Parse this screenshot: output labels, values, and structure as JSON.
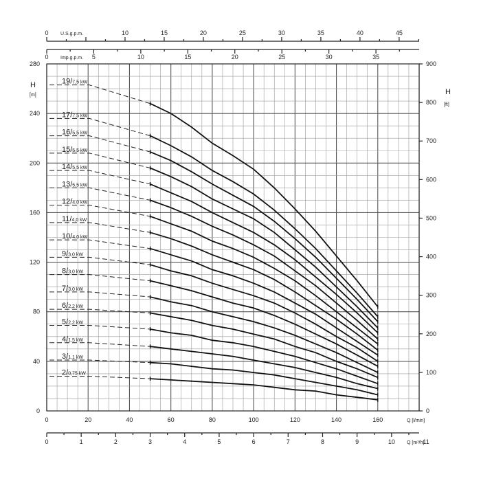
{
  "chart_data": {
    "type": "line",
    "axes": {
      "left": {
        "label": "H",
        "unit": "[m]",
        "range": [
          0,
          280
        ],
        "ticks": [
          "0",
          "40",
          "80",
          "120",
          "160",
          "200",
          "240",
          "280"
        ]
      },
      "right": {
        "label": "H",
        "unit": "[ft]",
        "range": [
          0,
          900
        ],
        "ticks": [
          "0",
          "100",
          "200",
          "300",
          "400",
          "500",
          "600",
          "700",
          "800",
          "900"
        ]
      },
      "bottom": {
        "label": "Q [l/min]",
        "range": [
          0,
          180
        ],
        "ticks": [
          "0",
          "20",
          "40",
          "60",
          "80",
          "100",
          "120",
          "140",
          "160"
        ]
      },
      "bottom2": {
        "label": "Q [m³/h]",
        "range": [
          0,
          10.8
        ],
        "ticks": [
          "0",
          "1",
          "2",
          "3",
          "4",
          "5",
          "6",
          "7",
          "8",
          "9",
          "10",
          "11"
        ]
      },
      "top1": {
        "label": "U.S.g.p.m.",
        "ticks": [
          "0",
          "10",
          "15",
          "20",
          "25",
          "30",
          "35",
          "40",
          "45"
        ]
      },
      "top2": {
        "label": "Imp.g.p.m.",
        "ticks": [
          "0",
          "5",
          "10",
          "15",
          "20",
          "25",
          "30",
          "35"
        ]
      },
      "grid": true
    },
    "x": [
      50,
      60,
      70,
      80,
      90,
      100,
      110,
      120,
      130,
      140,
      150,
      160
    ],
    "series": [
      {
        "name": "19",
        "kw": "7,5 kW",
        "label_h": 263,
        "values": [
          248,
          240,
          229,
          216,
          206,
          195,
          180,
          163,
          145,
          125,
          105,
          84
        ]
      },
      {
        "name": "17",
        "kw": "7,5 kW",
        "label_h": 236,
        "values": [
          222,
          214,
          205,
          194,
          185,
          175,
          162,
          147,
          131,
          113,
          95,
          76
        ]
      },
      {
        "name": "16",
        "kw": "5,5 kW",
        "label_h": 222,
        "values": [
          209,
          202,
          193,
          183,
          174,
          165,
          153,
          139,
          124,
          107,
          90,
          72
        ]
      },
      {
        "name": "15",
        "kw": "5,5 kW",
        "label_h": 208,
        "values": [
          196,
          189,
          181,
          171,
          163,
          155,
          144,
          130,
          116,
          100,
          84,
          67
        ]
      },
      {
        "name": "14",
        "kw": "5,5 kW",
        "label_h": 194,
        "values": [
          183,
          176,
          169,
          160,
          152,
          144,
          134,
          122,
          108,
          94,
          79,
          63
        ]
      },
      {
        "name": "13",
        "kw": "5,5 kW",
        "label_h": 180,
        "values": [
          170,
          164,
          157,
          149,
          142,
          134,
          125,
          113,
          101,
          87,
          73,
          58
        ]
      },
      {
        "name": "12",
        "kw": "4,0 kW",
        "label_h": 166,
        "values": [
          157,
          151,
          145,
          137,
          131,
          124,
          115,
          105,
          93,
          80,
          67,
          54
        ]
      },
      {
        "name": "11",
        "kw": "4,0 kW",
        "label_h": 152,
        "values": [
          144,
          139,
          133,
          126,
          120,
          114,
          106,
          96,
          85,
          74,
          62,
          49
        ]
      },
      {
        "name": "10",
        "kw": "4,0 kW",
        "label_h": 138,
        "values": [
          131,
          126,
          121,
          114,
          109,
          103,
          96,
          87,
          78,
          67,
          56,
          45
        ]
      },
      {
        "name": "9",
        "kw": "3,0 kW",
        "label_h": 124,
        "values": [
          118,
          113,
          109,
          103,
          98,
          93,
          87,
          79,
          70,
          60,
          51,
          40
        ]
      },
      {
        "name": "8",
        "kw": "3,0 kW",
        "label_h": 110,
        "values": [
          105,
          101,
          97,
          92,
          87,
          83,
          77,
          70,
          62,
          54,
          45,
          36
        ]
      },
      {
        "name": "7",
        "kw": "3,0 kW",
        "label_h": 96,
        "values": [
          92,
          88,
          85,
          80,
          76,
          72,
          67,
          61,
          54,
          47,
          39,
          31
        ]
      },
      {
        "name": "6",
        "kw": "2,2 kW",
        "label_h": 82,
        "values": [
          79,
          76,
          73,
          69,
          66,
          62,
          58,
          52,
          47,
          40,
          34,
          27
        ]
      },
      {
        "name": "5",
        "kw": "2,2 kW",
        "label_h": 69,
        "values": [
          66,
          63,
          61,
          57,
          55,
          52,
          48,
          44,
          39,
          34,
          28,
          22
        ]
      },
      {
        "name": "4",
        "kw": "1,5 kW",
        "label_h": 55,
        "values": [
          52,
          50,
          48,
          46,
          44,
          41,
          38,
          35,
          31,
          27,
          22,
          18
        ]
      },
      {
        "name": "3",
        "kw": "1,1 kW",
        "label_h": 41,
        "values": [
          39,
          38,
          36,
          34,
          33,
          31,
          29,
          26,
          23,
          20,
          17,
          13
        ]
      },
      {
        "name": "2",
        "kw": "0,75 kW",
        "label_h": 28,
        "values": [
          26,
          25,
          24,
          23,
          22,
          21,
          19,
          17,
          16,
          13,
          11,
          9
        ]
      }
    ]
  }
}
